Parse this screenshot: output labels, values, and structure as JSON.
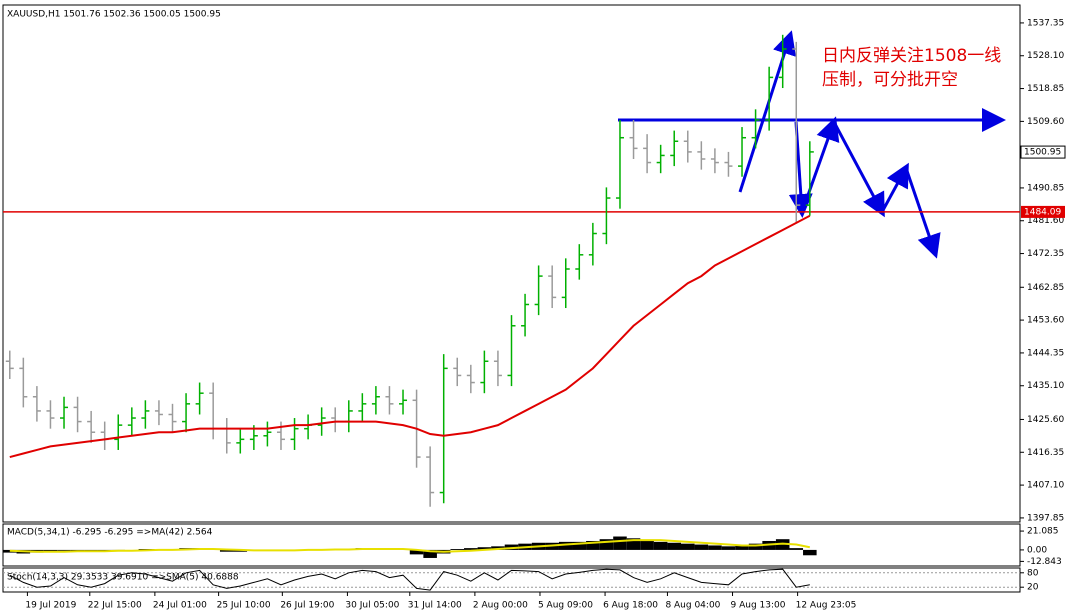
{
  "chart_data": [
    {
      "type": "ohlc",
      "title": "XAUUSD,H1  1501.76 1502.36 1500.05 1500.95",
      "xlim": [
        -0.5,
        74.5
      ],
      "xticks": [
        {
          "value": 1.3,
          "label": "19 Jul 2019"
        },
        {
          "value": 5.9,
          "label": "22 Jul 15:00"
        },
        {
          "value": 10.7,
          "label": "24 Jul 01:00"
        },
        {
          "value": 15.4,
          "label": "25 Jul 10:00"
        },
        {
          "value": 20.1,
          "label": "26 Jul 19:00"
        },
        {
          "value": 24.9,
          "label": "30 Jul 05:00"
        },
        {
          "value": 29.5,
          "label": "31 Jul 14:00"
        },
        {
          "value": 34.3,
          "label": "2 Aug 00:00"
        },
        {
          "value": 39.1,
          "label": "5 Aug 09:00"
        },
        {
          "value": 43.9,
          "label": "6 Aug 18:00"
        },
        {
          "value": 48.5,
          "label": "8 Aug 04:00"
        },
        {
          "value": 53.3,
          "label": "9 Aug 13:00"
        },
        {
          "value": 58.1,
          "label": "12 Aug 23:05"
        }
      ],
      "ylim": [
        1396.7,
        1542.4
      ],
      "yticks": [
        1537.35,
        {
          "value": 1528.1,
          "label": "1528.10"
        },
        1518.85,
        {
          "value": 1509.6,
          "label": "1509.60"
        },
        1490.85,
        {
          "value": 1481.6,
          "label": "1481.60"
        },
        1472.35,
        1462.85,
        {
          "value": 1453.6,
          "label": "1453.60"
        },
        1444.35,
        {
          "value": 1435.1,
          "label": "1435.10"
        },
        {
          "value": 1425.6,
          "label": "1425.60"
        },
        1416.35,
        {
          "value": 1407.1,
          "label": "1407.10"
        },
        1397.85
      ],
      "up_color": "#00b000",
      "down_color": "#9a9a9a",
      "open": [
        1442,
        1440,
        1432,
        1428,
        1426,
        1429,
        1425,
        1422,
        1420,
        1424,
        1426,
        1428,
        1427,
        1425,
        1430,
        1433,
        1423,
        1419,
        1420,
        1421,
        1422,
        1420,
        1423,
        1424,
        1426,
        1425,
        1428,
        1430,
        1432,
        1430,
        1431,
        1415,
        1405,
        1440,
        1438,
        1436,
        1442,
        1438,
        1452,
        1458,
        1466,
        1460,
        1468,
        1472,
        1478,
        1488,
        1505,
        1502,
        1498,
        1500,
        1504,
        1501,
        1499,
        1498,
        1497,
        1505,
        1510,
        1522,
        1530,
        1486
      ],
      "high": [
        1445,
        1443,
        1435,
        1431,
        1432,
        1432,
        1428,
        1425,
        1427,
        1429,
        1431,
        1431,
        1430,
        1433,
        1436,
        1436,
        1426,
        1423,
        1424,
        1425,
        1425,
        1426,
        1427,
        1429,
        1429,
        1431,
        1433,
        1435,
        1435,
        1434,
        1434,
        1418,
        1444,
        1443,
        1441,
        1445,
        1445,
        1455,
        1461,
        1469,
        1469,
        1471,
        1475,
        1481,
        1491,
        1510,
        1510,
        1506,
        1503,
        1507,
        1507,
        1504,
        1502,
        1501,
        1508,
        1513,
        1525,
        1534,
        1532,
        1504
      ],
      "low": [
        1437,
        1429,
        1425,
        1423,
        1423,
        1422,
        1419,
        1417,
        1417,
        1421,
        1423,
        1424,
        1422,
        1422,
        1427,
        1420,
        1416,
        1416,
        1417,
        1418,
        1417,
        1417,
        1420,
        1421,
        1422,
        1422,
        1425,
        1427,
        1427,
        1427,
        1412,
        1401,
        1402,
        1435,
        1433,
        1433,
        1435,
        1435,
        1449,
        1455,
        1457,
        1457,
        1465,
        1469,
        1475,
        1485,
        1499,
        1495,
        1495,
        1497,
        1498,
        1496,
        1495,
        1494,
        1494,
        1502,
        1507,
        1519,
        1481,
        1483
      ],
      "close": [
        1440,
        1432,
        1428,
        1426,
        1429,
        1425,
        1422,
        1420,
        1424,
        1426,
        1428,
        1427,
        1425,
        1430,
        1433,
        1423,
        1419,
        1420,
        1421,
        1422,
        1420,
        1423,
        1424,
        1426,
        1425,
        1428,
        1430,
        1432,
        1430,
        1431,
        1415,
        1405,
        1440,
        1438,
        1436,
        1442,
        1438,
        1452,
        1458,
        1466,
        1460,
        1468,
        1472,
        1478,
        1488,
        1505,
        1502,
        1498,
        1500,
        1504,
        1501,
        1499,
        1498,
        1497,
        1505,
        1510,
        1522,
        1530,
        1486,
        1501
      ],
      "ma": {
        "color": "#e00000",
        "values": [
          1415,
          1416,
          1417,
          1418,
          1418.5,
          1419,
          1419.5,
          1420,
          1420.5,
          1421,
          1421.5,
          1422,
          1422,
          1422.5,
          1423,
          1423,
          1423,
          1423,
          1423,
          1423,
          1423.5,
          1424,
          1424,
          1424.5,
          1425,
          1425,
          1425,
          1425,
          1424.5,
          1424,
          1423,
          1421.5,
          1421,
          1421.5,
          1422,
          1423,
          1424,
          1426,
          1428,
          1430,
          1432,
          1434,
          1437,
          1440,
          1444,
          1448,
          1452,
          1455,
          1458,
          1461,
          1464,
          1466,
          1469,
          1471,
          1473,
          1475,
          1477,
          1479,
          1481,
          1483
        ]
      },
      "level": {
        "value": 1484.09,
        "color": "#e00000"
      },
      "last_price": 1500.95,
      "annotations": [
        "日内反弹关注1508一线",
        "压制，可分批开空"
      ]
    },
    {
      "type": "macd",
      "title": "MACD(5,34,1) -6.295 -6.295 =>MA(42) 2.564",
      "ylim": [
        -18,
        29
      ],
      "yticks": [
        21.085,
        {
          "value": 0,
          "label": "0.00"
        },
        -12.843
      ],
      "hist_color": "#000000",
      "signal_color": "#e8e000",
      "values": [
        -3,
        -4,
        -3,
        -2,
        -1,
        -1,
        -2,
        -2,
        -1,
        0,
        1,
        1,
        1,
        2,
        2,
        0,
        -2,
        -2,
        -1,
        -1,
        -1,
        0,
        0,
        1,
        1,
        1,
        2,
        2,
        1,
        0,
        -5,
        -9,
        -4,
        1,
        2,
        3,
        4,
        6,
        7,
        8,
        8,
        9,
        9,
        10,
        12,
        15,
        13,
        11,
        9,
        8,
        7,
        6,
        5,
        4,
        5,
        7,
        10,
        12,
        2,
        -6
      ],
      "signal": [
        -1,
        -1.5,
        -2,
        -2,
        -2,
        -1.5,
        -1.5,
        -1.5,
        -1,
        -1,
        -0.5,
        0,
        0,
        0.5,
        1,
        1,
        0.5,
        0,
        -0.5,
        -0.5,
        -0.5,
        -0.5,
        0,
        0,
        0.5,
        0.5,
        1,
        1,
        1,
        1,
        0,
        -1.5,
        -2,
        -1.5,
        -1,
        0,
        1,
        2,
        3,
        4,
        5,
        6,
        7,
        8,
        9,
        10,
        11,
        11,
        11,
        10,
        9,
        8,
        7,
        6,
        5,
        5,
        6,
        7,
        6,
        3
      ]
    },
    {
      "type": "stoch",
      "title": "Stoch(14,3,3) 29.3533 39.6910 =>SMA(5) 40.6888",
      "ylim": [
        0,
        100
      ],
      "yticks": [
        80,
        20
      ],
      "color": "#000000",
      "values": [
        70,
        40,
        20,
        25,
        60,
        30,
        20,
        35,
        70,
        80,
        75,
        60,
        45,
        80,
        90,
        30,
        15,
        25,
        40,
        55,
        30,
        50,
        65,
        75,
        55,
        80,
        90,
        85,
        60,
        70,
        15,
        8,
        85,
        70,
        45,
        80,
        50,
        90,
        88,
        85,
        55,
        75,
        82,
        90,
        95,
        92,
        60,
        40,
        55,
        80,
        60,
        40,
        35,
        30,
        75,
        85,
        92,
        95,
        20,
        30
      ]
    }
  ]
}
